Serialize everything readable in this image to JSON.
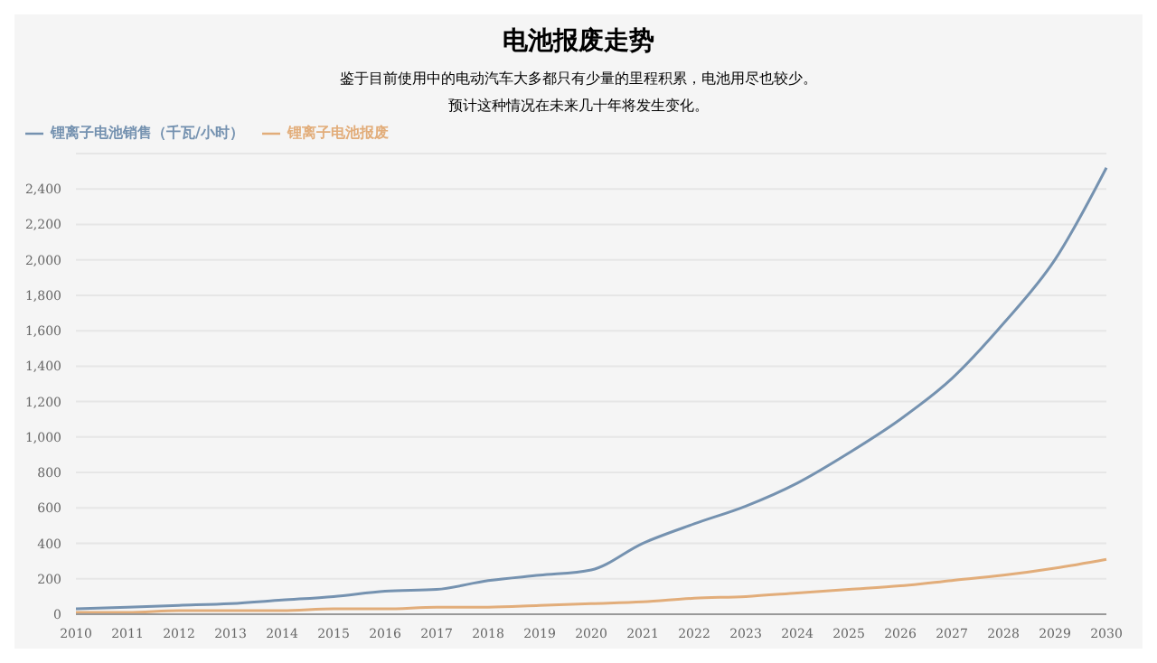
{
  "chart_data": {
    "type": "line",
    "title": "电池报废走势",
    "subtitle": "鉴于目前使用中的电动汽车大多都只有少量的里程积累，电池用尽也较少。",
    "annotations": [
      "预计这种情况在未来几十年将发生变化。"
    ],
    "categories": [
      "2010",
      "2011",
      "2012",
      "2013",
      "2014",
      "2015",
      "2016",
      "2017",
      "2018",
      "2019",
      "2020",
      "2021",
      "2022",
      "2023",
      "2024",
      "2025",
      "2026",
      "2027",
      "2028",
      "2029",
      "2030"
    ],
    "series": [
      {
        "name": "锂离子电池销售（千瓦/小时）",
        "color": "#7592b0",
        "values": [
          30,
          40,
          50,
          60,
          80,
          100,
          130,
          140,
          190,
          220,
          250,
          400,
          510,
          610,
          740,
          910,
          1100,
          1330,
          1640,
          2000,
          2520
        ]
      },
      {
        "name": "锂离子电池报废",
        "color": "#e2ad7a",
        "values": [
          10,
          10,
          20,
          20,
          20,
          30,
          30,
          40,
          40,
          50,
          60,
          70,
          90,
          100,
          120,
          140,
          160,
          190,
          220,
          260,
          310
        ]
      }
    ],
    "ylim": [
      0,
      2600
    ],
    "yticks": [
      0,
      200,
      400,
      600,
      800,
      {
        "value": 1000,
        "label": "1,000"
      },
      {
        "value": 1200,
        "label": "1,200"
      },
      {
        "value": 1400,
        "label": "1,400"
      },
      {
        "value": 1600,
        "label": "1,600"
      },
      {
        "value": 1800,
        "label": "1,800"
      },
      {
        "value": 2000,
        "label": "2,000"
      },
      {
        "value": 2200,
        "label": "2,200"
      },
      {
        "value": 2400,
        "label": "2,400"
      }
    ],
    "grid": "y",
    "legend": "top left",
    "marker": "none",
    "line_style": "solid"
  }
}
